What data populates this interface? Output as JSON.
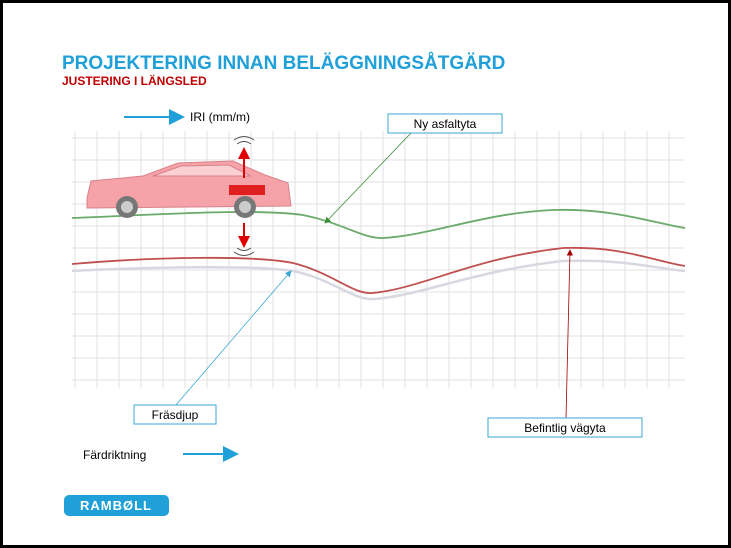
{
  "header": {
    "title": "PROJEKTERING INNAN BELÄGGNINGSÅTGÄRD",
    "subtitle": "JUSTERING I LÄNGSLED"
  },
  "labels": {
    "iri": "IRI (mm/m)",
    "new_surface": "Ny asfaltyta",
    "milling_depth": "Fräsdjup",
    "existing_surface": "Befintlig vägyta",
    "direction": "Färdriktning"
  },
  "logo": "RAMBØLL"
}
